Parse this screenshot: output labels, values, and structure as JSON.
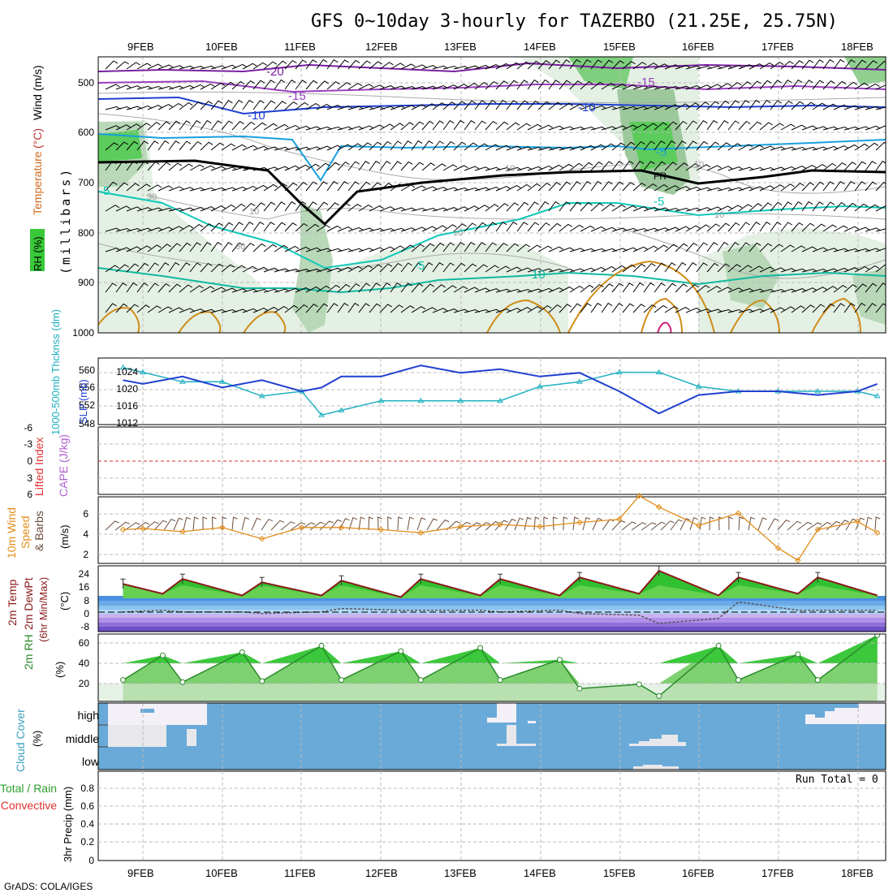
{
  "header": {
    "title": "GFS 0~10day 3-hourly for TAZERBO (21.25E, 25.75N)",
    "credit": "GrADS: COLA/IGES"
  },
  "dates": [
    "9FEB",
    "10FEB",
    "11FEB",
    "12FEB",
    "13FEB",
    "14FEB",
    "15FEB",
    "16FEB",
    "17FEB",
    "18FEB"
  ],
  "colors": {
    "rh_green": "#38c838",
    "temp_purple": "#7a1fa0",
    "temp_blue": "#2040d0",
    "temp_cyan": "#18a0e0",
    "temp_teal": "#10c8b8",
    "temp_orange": "#d08c18",
    "slp": "#2040d0",
    "thickness": "#20b0c0",
    "wind": "#e08c18",
    "temp_curve": "#8b1a1a",
    "rh2m": "#2a8a2a",
    "cloud": "#6aaad8",
    "grid": "#bbbbbb"
  },
  "panels": {
    "upper": {
      "labels": {
        "rh": "RH (%)",
        "temperature": "Temperature",
        "temp_unit": "(°C)",
        "wind": "Wind (m/s)",
        "pressure": "(millibars)"
      },
      "pressure_ticks": [
        "500",
        "600",
        "700",
        "800",
        "900",
        "1000"
      ],
      "isotherm_labels": [
        "-20",
        "-15",
        "-15",
        "-10",
        "-10",
        "-5",
        "-5",
        "-5",
        "-5",
        "-10",
        "FR"
      ],
      "rh_labels": [
        "30",
        "30",
        "10",
        "10",
        "10",
        "10",
        "10"
      ]
    },
    "slp": {
      "labels": {
        "thickness": "1000-500mb Thcknss (dm)",
        "slp": "SLP (mb)"
      },
      "left_ticks": [
        "560",
        "556",
        "552",
        "548"
      ],
      "right_ticks": [
        "1024",
        "1020",
        "1016",
        "1012"
      ]
    },
    "cape": {
      "labels": {
        "li": "Lifted Index",
        "cape": "CAPE (J/kg)"
      },
      "ticks": [
        "-6",
        "-3",
        "0",
        "3",
        "6"
      ]
    },
    "wind10": {
      "labels": {
        "line1": "10m Wind",
        "line2": "Speed",
        "line3": "& Barbs",
        "unit": "(m/s)"
      },
      "ticks": [
        "6",
        "4",
        "2"
      ]
    },
    "temp2m": {
      "labels": {
        "line1": "2m Temp",
        "line2": "2m DewPt",
        "line3": "(6hr Min/Max)",
        "unit": "(°C)"
      },
      "ticks": [
        "24",
        "16",
        "8",
        "0",
        "-8"
      ]
    },
    "rh2m": {
      "labels": {
        "main": "2m RH",
        "unit": "(%)"
      },
      "ticks": [
        "60",
        "40",
        "20"
      ]
    },
    "cloud": {
      "labels": {
        "main": "Cloud Cover",
        "unit": "(%)"
      },
      "levels": [
        "high",
        "middle",
        "low"
      ]
    },
    "precip": {
      "labels": {
        "total_rain": "Total / Rain",
        "convective": "Convective",
        "main": "3hr Precip (mm)"
      },
      "ticks": [
        "0.8",
        "0.6",
        "0.4",
        "0.2",
        "0"
      ],
      "run_total": "Run Total = 0"
    }
  },
  "chart_data": [
    {
      "type": "line",
      "title": "1000-500mb Thickness and Sea Level Pressure",
      "x": [
        "8FEB 18Z",
        "9FEB 00Z",
        "9FEB 12Z",
        "10FEB 00Z",
        "10FEB 12Z",
        "11FEB 00Z",
        "11FEB 06Z",
        "11FEB 12Z",
        "12FEB 00Z",
        "12FEB 12Z",
        "13FEB 00Z",
        "13FEB 12Z",
        "14FEB 00Z",
        "14FEB 12Z",
        "15FEB 00Z",
        "15FEB 12Z",
        "16FEB 00Z",
        "16FEB 12Z",
        "17FEB 00Z",
        "17FEB 12Z",
        "18FEB 00Z",
        "18FEB 06Z"
      ],
      "series": [
        {
          "name": "SLP (mb)",
          "axis": "right",
          "values": [
            1022,
            1021,
            1023,
            1020,
            1022,
            1019,
            1020,
            1023,
            1023,
            1026,
            1024,
            1025,
            1023,
            1024,
            1019,
            1013,
            1018,
            1019,
            1019,
            1018,
            1019,
            1021
          ]
        },
        {
          "name": "1000-500mb Thickness (dm)",
          "axis": "left",
          "values": [
            560,
            559,
            557,
            557,
            554,
            555,
            550,
            551,
            553,
            553,
            553,
            553,
            556,
            557,
            559,
            559,
            556,
            555,
            555,
            555,
            555,
            554
          ]
        }
      ],
      "ylim_left": [
        548,
        562
      ],
      "ylim_right": [
        1010,
        1028
      ]
    },
    {
      "type": "line",
      "title": "10m Wind Speed",
      "ylabel": "(m/s)",
      "x": [
        "8FEB 18Z",
        "9FEB 00Z",
        "9FEB 12Z",
        "10FEB 00Z",
        "10FEB 12Z",
        "11FEB 00Z",
        "11FEB 12Z",
        "12FEB 00Z",
        "12FEB 12Z",
        "13FEB 00Z",
        "13FEB 12Z",
        "14FEB 00Z",
        "14FEB 12Z",
        "15FEB 00Z",
        "15FEB 06Z",
        "15FEB 12Z",
        "16FEB 00Z",
        "16FEB 12Z",
        "17FEB 00Z",
        "17FEB 06Z",
        "17FEB 12Z",
        "18FEB 00Z",
        "18FEB 06Z"
      ],
      "series": [
        {
          "name": "10m wind speed",
          "values": [
            4.3,
            4.4,
            4.1,
            4.5,
            3.4,
            4.5,
            4.5,
            4.3,
            4.0,
            4.6,
            4.8,
            4.6,
            5.0,
            5.3,
            7.6,
            6.5,
            4.7,
            5.9,
            2.5,
            1.3,
            4.3,
            5.1,
            4.0
          ]
        }
      ],
      "ylim": [
        1,
        7.5
      ]
    },
    {
      "type": "area",
      "title": "2m Temperature and Dew Point",
      "ylabel": "(°C)",
      "x": [
        "8FEB 18Z",
        "9FEB 06Z",
        "9FEB 12Z",
        "10FEB 06Z",
        "10FEB 12Z",
        "11FEB 06Z",
        "11FEB 12Z",
        "12FEB 06Z",
        "12FEB 12Z",
        "13FEB 06Z",
        "13FEB 12Z",
        "14FEB 06Z",
        "14FEB 12Z",
        "15FEB 06Z",
        "15FEB 12Z",
        "16FEB 06Z",
        "16FEB 12Z",
        "17FEB 06Z",
        "17FEB 12Z",
        "18FEB 06Z"
      ],
      "series": [
        {
          "name": "2m Temp",
          "values": [
            17,
            11,
            20,
            10,
            18,
            10,
            19,
            9,
            20,
            10,
            20,
            10,
            21,
            11,
            25,
            10,
            21,
            11,
            21,
            10
          ]
        },
        {
          "name": "2m DewPt",
          "values": [
            0,
            1,
            0,
            0,
            -1,
            0,
            2,
            1,
            1,
            1,
            0,
            1,
            -1,
            -2,
            -7,
            -4,
            6,
            1,
            1,
            1
          ]
        }
      ],
      "ylim": [
        -12,
        28
      ]
    },
    {
      "type": "area",
      "title": "2m Relative Humidity",
      "ylabel": "(%)",
      "x": [
        "8FEB 18Z",
        "9FEB 06Z",
        "9FEB 12Z",
        "10FEB 06Z",
        "10FEB 12Z",
        "11FEB 06Z",
        "11FEB 12Z",
        "12FEB 06Z",
        "12FEB 12Z",
        "13FEB 06Z",
        "13FEB 12Z",
        "14FEB 06Z",
        "14FEB 12Z",
        "15FEB 06Z",
        "15FEB 12Z",
        "16FEB 06Z",
        "16FEB 12Z",
        "17FEB 06Z",
        "17FEB 12Z",
        "18FEB 06Z"
      ],
      "series": [
        {
          "name": "2m RH",
          "values": [
            25,
            48,
            23,
            51,
            24,
            57,
            25,
            52,
            25,
            55,
            25,
            44,
            17,
            21,
            10,
            57,
            25,
            49,
            25,
            67
          ]
        }
      ],
      "ylim": [
        5,
        68
      ]
    }
  ]
}
